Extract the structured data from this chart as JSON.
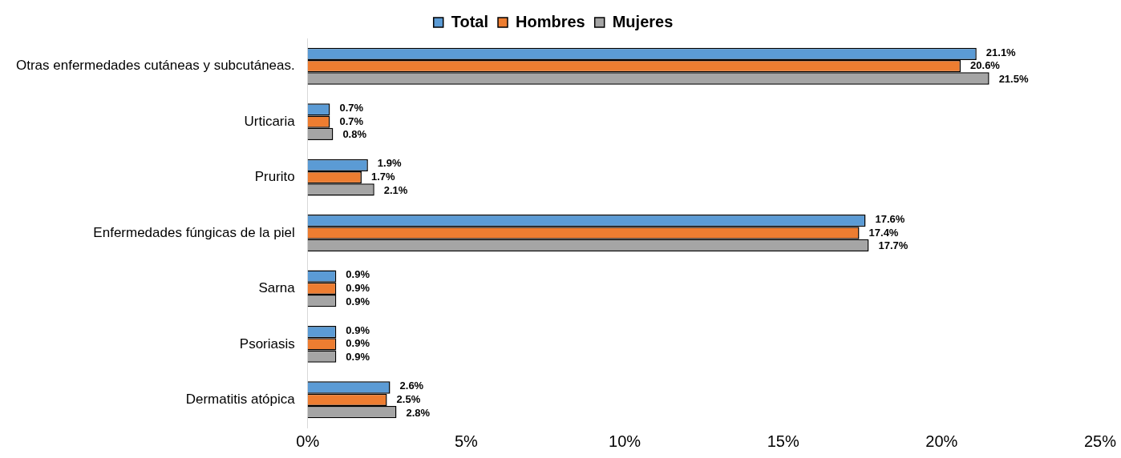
{
  "chart_data": {
    "type": "bar",
    "orientation": "horizontal",
    "categories": [
      "Otras enfermedades cutáneas y subcutáneas.",
      "Urticaria",
      "Prurito",
      "Enfermedades fúngicas de la piel",
      "Sarna",
      "Psoriasis",
      "Dermatitis atópica"
    ],
    "series": [
      {
        "name": "Total",
        "color": "#5b9bd5",
        "values": [
          21.1,
          0.7,
          1.9,
          17.6,
          0.9,
          0.9,
          2.6
        ],
        "value_labels": [
          "21.1%",
          "0.7%",
          "1.9%",
          "17.6%",
          "0.9%",
          "0.9%",
          "2.6%"
        ]
      },
      {
        "name": "Hombres",
        "color": "#ed7d31",
        "values": [
          20.6,
          0.7,
          1.7,
          17.4,
          0.9,
          0.9,
          2.5
        ],
        "value_labels": [
          "20.6%",
          "0.7%",
          "1.7%",
          "17.4%",
          "0.9%",
          "0.9%",
          "2.5%"
        ]
      },
      {
        "name": "Mujeres",
        "color": "#a5a5a5",
        "values": [
          21.5,
          0.8,
          2.1,
          17.7,
          0.9,
          0.9,
          2.8
        ],
        "value_labels": [
          "21.5%",
          "0.8%",
          "2.1%",
          "17.7%",
          "0.9%",
          "0.9%",
          "2.8%"
        ]
      }
    ],
    "xlim": [
      0,
      25
    ],
    "xticks": [
      {
        "value": 0,
        "label": "0%"
      },
      {
        "value": 5,
        "label": "5%"
      },
      {
        "value": 10,
        "label": "10%"
      },
      {
        "value": 15,
        "label": "15%"
      },
      {
        "value": 20,
        "label": "20%"
      },
      {
        "value": 25,
        "label": "25%"
      }
    ],
    "grid": false,
    "legend": "top"
  }
}
